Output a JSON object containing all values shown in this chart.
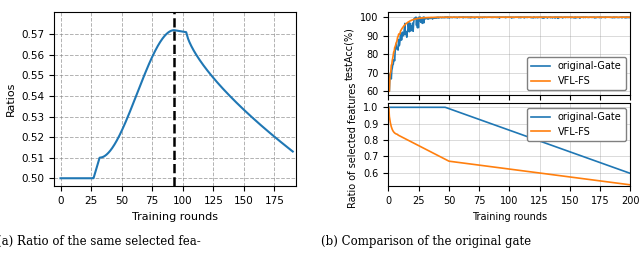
{
  "left_plot": {
    "xlabel": "Training rounds",
    "ylabel": "Ratios",
    "dashed_line_x": 93,
    "xlim": [
      -5,
      193
    ],
    "ylim": [
      0.496,
      0.581
    ],
    "yticks": [
      0.5,
      0.51,
      0.52,
      0.53,
      0.54,
      0.55,
      0.56,
      0.57
    ],
    "xticks": [
      0,
      25,
      50,
      75,
      100,
      125,
      150,
      175
    ],
    "line_color": "#1f77b4",
    "dashed_color": "black"
  },
  "top_right": {
    "ylabel": "testAcc(%)",
    "ylim": [
      58,
      103
    ],
    "yticks": [
      60,
      70,
      80,
      90,
      100
    ],
    "xticks": [
      0,
      25,
      50,
      75,
      100,
      125,
      150,
      175,
      200
    ],
    "legend_labels": [
      "original-Gate",
      "VFL-FS"
    ],
    "colors": [
      "#1f77b4",
      "#ff7f0e"
    ]
  },
  "bottom_right": {
    "xlabel": "Training rounds",
    "ylabel": "Ratio of selected features",
    "ylim": [
      0.515,
      1.025
    ],
    "yticks": [
      0.6,
      0.7,
      0.8,
      0.9,
      1.0
    ],
    "xticks": [
      0,
      25,
      50,
      75,
      100,
      125,
      150,
      175,
      200
    ],
    "legend_labels": [
      "original-Gate",
      "VFL-FS"
    ],
    "colors": [
      "#1f77b4",
      "#ff7f0e"
    ]
  },
  "caption_left": "(a) Ratio of the same selected fea-",
  "caption_right": "(b) Comparison of the original gate"
}
